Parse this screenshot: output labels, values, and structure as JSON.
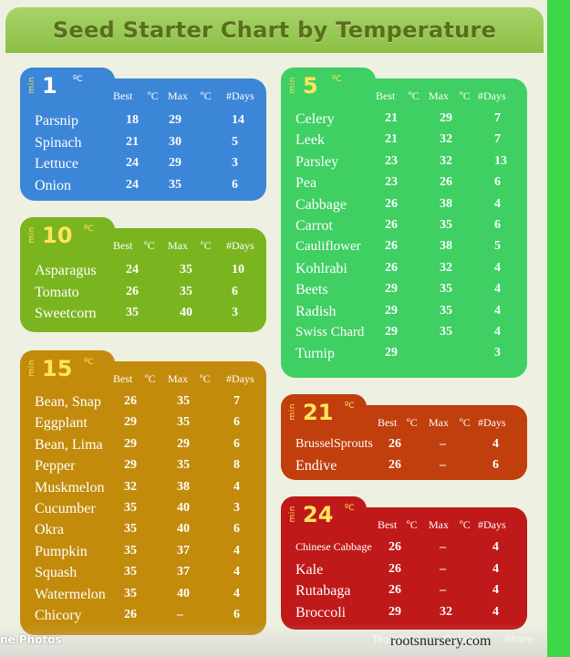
{
  "title": "Seed Starter Chart by Temperature",
  "min_label": "min",
  "headers": {
    "best": "Best",
    "max": "Max",
    "unit": "ºC",
    "days": "#Days"
  },
  "panels": {
    "p1": {
      "temp": "1",
      "unit": "ºC",
      "rows": [
        {
          "name": "Parsnip",
          "best": "18",
          "max": "29",
          "days": "14"
        },
        {
          "name": "Spinach",
          "best": "21",
          "max": "30",
          "days": "5"
        },
        {
          "name": "Lettuce",
          "best": "24",
          "max": "29",
          "days": "3"
        },
        {
          "name": "Onion",
          "best": "24",
          "max": "35",
          "days": "6"
        }
      ]
    },
    "p10": {
      "temp": "10",
      "unit": "ºC",
      "rows": [
        {
          "name": "Asparagus",
          "best": "24",
          "max": "35",
          "days": "10"
        },
        {
          "name": "Tomato",
          "best": "26",
          "max": "35",
          "days": "6"
        },
        {
          "name": "Sweetcorn",
          "best": "35",
          "max": "40",
          "days": "3"
        }
      ]
    },
    "p15": {
      "temp": "15",
      "unit": "ºC",
      "rows": [
        {
          "name": "Bean, Snap",
          "best": "26",
          "max": "35",
          "days": "7"
        },
        {
          "name": "Eggplant",
          "best": "29",
          "max": "35",
          "days": "6"
        },
        {
          "name": "Bean, Lima",
          "best": "29",
          "max": "29",
          "days": "6"
        },
        {
          "name": "Pepper",
          "best": "29",
          "max": "35",
          "days": "8"
        },
        {
          "name": "Muskmelon",
          "best": "32",
          "max": "38",
          "days": "4"
        },
        {
          "name": "Cucumber",
          "best": "35",
          "max": "40",
          "days": "3"
        },
        {
          "name": "Okra",
          "best": "35",
          "max": "40",
          "days": "6"
        },
        {
          "name": "Pumpkin",
          "best": "35",
          "max": "37",
          "days": "4"
        },
        {
          "name": "Squash",
          "best": "35",
          "max": "37",
          "days": "4"
        },
        {
          "name": "Watermelon",
          "best": "35",
          "max": "40",
          "days": "4"
        },
        {
          "name": "Chicory",
          "best": "26",
          "max": "–",
          "days": "6"
        }
      ]
    },
    "p5": {
      "temp": "5",
      "unit": "ºC",
      "rows": [
        {
          "name": "Celery",
          "best": "21",
          "max": "29",
          "days": "7"
        },
        {
          "name": "Leek",
          "best": "21",
          "max": "32",
          "days": "7"
        },
        {
          "name": "Parsley",
          "best": "23",
          "max": "32",
          "days": "13"
        },
        {
          "name": "Pea",
          "best": "23",
          "max": "26",
          "days": "6"
        },
        {
          "name": "Cabbage",
          "best": "26",
          "max": "38",
          "days": "4"
        },
        {
          "name": "Carrot",
          "best": "26",
          "max": "35",
          "days": "6"
        },
        {
          "name": "Cauliflower",
          "best": "26",
          "max": "38",
          "days": "5"
        },
        {
          "name": "Kohlrabi",
          "best": "26",
          "max": "32",
          "days": "4"
        },
        {
          "name": "Beets",
          "best": "29",
          "max": "35",
          "days": "4"
        },
        {
          "name": "Radish",
          "best": "29",
          "max": "35",
          "days": "4"
        },
        {
          "name": "Swiss Chard",
          "best": "29",
          "max": "35",
          "days": "4"
        },
        {
          "name": "Turnip",
          "best": "29",
          "max": "",
          "days": "3"
        }
      ]
    },
    "p21": {
      "temp": "21",
      "unit": "ºC",
      "rows": [
        {
          "name": "BrusselSprouts",
          "best": "26",
          "max": "–",
          "days": "4"
        },
        {
          "name": "Endive",
          "best": "26",
          "max": "–",
          "days": "6"
        }
      ]
    },
    "p24": {
      "temp": "24",
      "unit": "ºC",
      "rows": [
        {
          "name": "Chinese Cabbage",
          "best": "26",
          "max": "–",
          "days": "4"
        },
        {
          "name": "Kale",
          "best": "26",
          "max": "–",
          "days": "4"
        },
        {
          "name": "Rutabaga",
          "best": "26",
          "max": "–",
          "days": "4"
        },
        {
          "name": "Broccoli",
          "best": "29",
          "max": "32",
          "days": "4"
        }
      ]
    }
  },
  "footer": {
    "photos": "ne Photos",
    "ghost1": "Tag photo",
    "ghost2": "Options",
    "ghost3": "Share",
    "site": "rootsnursery.com"
  },
  "colors": {
    "blue": "#3c86d8",
    "lime": "#7ab51f",
    "amber": "#c28b0b",
    "green": "#3fcf63",
    "orange_red": "#c13e0d",
    "red": "#c01919",
    "title_text": "#5a6e1c"
  }
}
